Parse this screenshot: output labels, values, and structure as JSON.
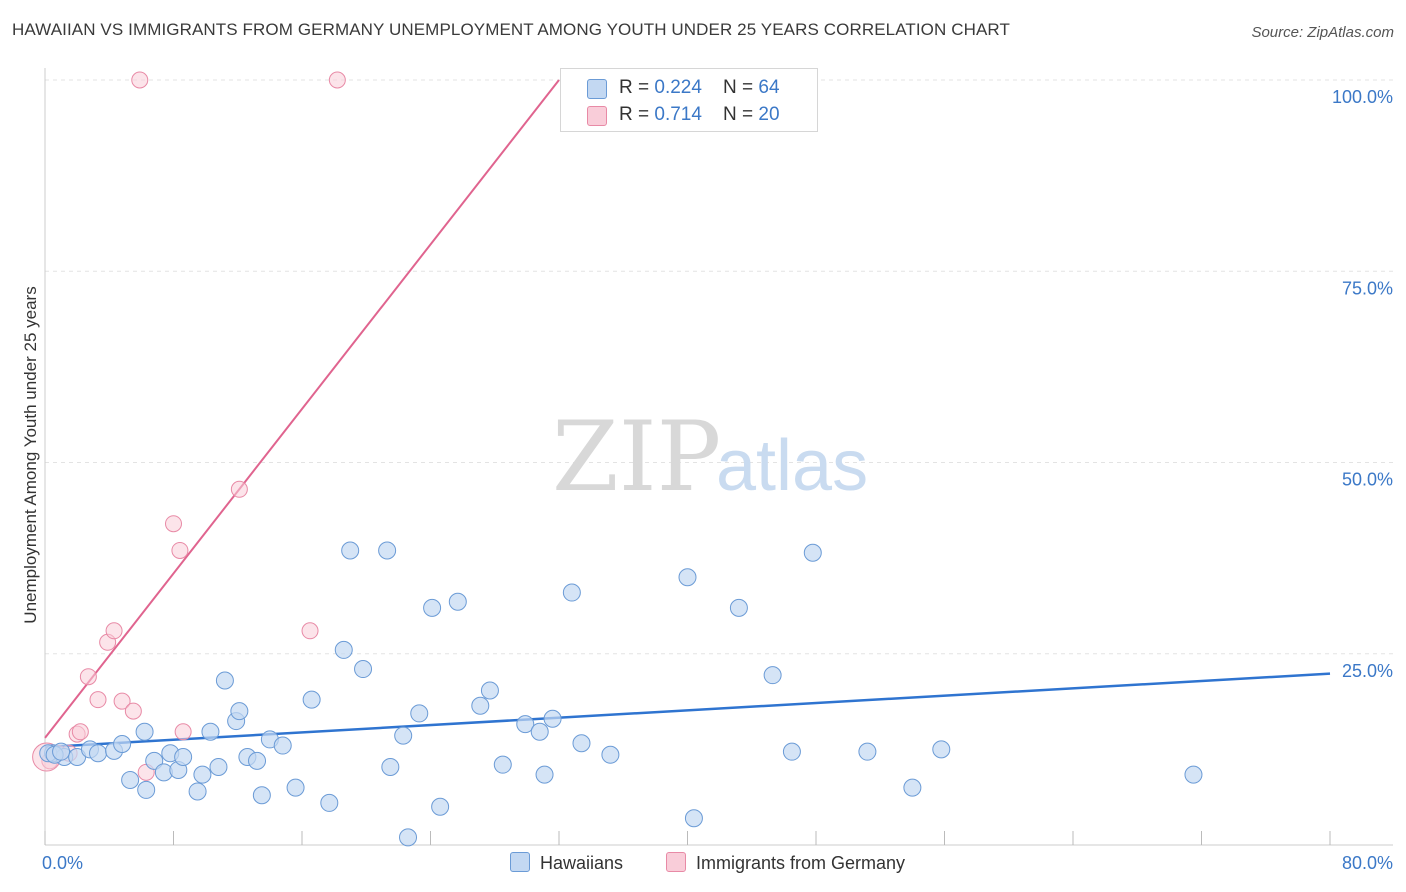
{
  "header": {
    "title": "HAWAIIAN VS IMMIGRANTS FROM GERMANY UNEMPLOYMENT AMONG YOUTH UNDER 25 YEARS CORRELATION CHART",
    "source": "Source: ZipAtlas.com"
  },
  "watermark": {
    "zip": "ZIP",
    "atlas": "atlas"
  },
  "legend": {
    "rows": [
      {
        "r_label": "R = ",
        "r_value": "0.224",
        "n_label": "N = ",
        "n_value": "64"
      },
      {
        "r_label": "R = ",
        "r_value": "0.714",
        "n_label": "N = ",
        "n_value": "20"
      }
    ]
  },
  "colors": {
    "hawaiians_fill": "#c3d8f2",
    "hawaiians_stroke": "#6b9bd6",
    "hawaiians_line": "#2f74d0",
    "germany_fill": "#f9cdd9",
    "germany_stroke": "#e88aa6",
    "germany_line": "#e0648f",
    "tick_text": "#3b78c7",
    "grid": "#e3e3e3"
  },
  "chart_data": {
    "type": "scatter",
    "title": "HAWAIIAN VS IMMIGRANTS FROM GERMANY UNEMPLOYMENT AMONG YOUTH UNDER 25 YEARS CORRELATION CHART",
    "xlabel": "",
    "ylabel": "Unemployment Among Youth under 25 years",
    "xlim": [
      0,
      80
    ],
    "ylim": [
      0,
      100
    ],
    "x_tick_labels": [
      {
        "value": 0,
        "label": "0.0%"
      },
      {
        "value": 80,
        "label": "80.0%"
      }
    ],
    "y_tick_labels": [
      {
        "value": 25,
        "label": "25.0%"
      },
      {
        "value": 50,
        "label": "50.0%"
      },
      {
        "value": 75,
        "label": "75.0%"
      },
      {
        "value": 100,
        "label": "100.0%"
      }
    ],
    "x_minor_ticks": [
      0,
      8,
      16,
      24,
      32,
      40,
      48,
      56,
      64,
      72,
      80
    ],
    "series": [
      {
        "name": "Hawaiians",
        "r": 0.224,
        "n": 64,
        "trend": {
          "x0": 0,
          "y0": 12.8,
          "x1": 80,
          "y1": 22.4
        },
        "points": [
          [
            0.5,
            12.0
          ],
          [
            1.2,
            11.5
          ],
          [
            2.0,
            11.5
          ],
          [
            2.8,
            12.5
          ],
          [
            3.3,
            12.0
          ],
          [
            4.3,
            12.3
          ],
          [
            4.8,
            13.2
          ],
          [
            5.3,
            8.5
          ],
          [
            6.2,
            14.8
          ],
          [
            6.3,
            7.2
          ],
          [
            6.8,
            11.0
          ],
          [
            7.4,
            9.5
          ],
          [
            7.8,
            12.0
          ],
          [
            8.3,
            9.8
          ],
          [
            8.6,
            11.5
          ],
          [
            9.5,
            7.0
          ],
          [
            9.8,
            9.2
          ],
          [
            10.3,
            14.8
          ],
          [
            10.8,
            10.2
          ],
          [
            11.2,
            21.5
          ],
          [
            11.9,
            16.2
          ],
          [
            12.1,
            17.5
          ],
          [
            12.6,
            11.5
          ],
          [
            13.2,
            11.0
          ],
          [
            13.5,
            6.5
          ],
          [
            14.0,
            13.8
          ],
          [
            14.8,
            13.0
          ],
          [
            15.6,
            7.5
          ],
          [
            16.6,
            19.0
          ],
          [
            17.7,
            5.5
          ],
          [
            18.6,
            25.5
          ],
          [
            19.0,
            38.5
          ],
          [
            19.8,
            23.0
          ],
          [
            21.3,
            38.5
          ],
          [
            21.5,
            10.2
          ],
          [
            22.3,
            14.3
          ],
          [
            22.6,
            1.0
          ],
          [
            23.3,
            17.2
          ],
          [
            24.1,
            31.0
          ],
          [
            24.6,
            5.0
          ],
          [
            25.7,
            31.8
          ],
          [
            27.1,
            18.2
          ],
          [
            27.7,
            20.2
          ],
          [
            28.5,
            10.5
          ],
          [
            29.9,
            15.8
          ],
          [
            30.8,
            14.8
          ],
          [
            31.1,
            9.2
          ],
          [
            31.6,
            16.5
          ],
          [
            32.8,
            33.0
          ],
          [
            33.4,
            13.3
          ],
          [
            35.2,
            11.8
          ],
          [
            40.0,
            35.0
          ],
          [
            40.4,
            3.5
          ],
          [
            43.2,
            31.0
          ],
          [
            45.3,
            22.2
          ],
          [
            46.5,
            12.2
          ],
          [
            47.8,
            38.2
          ],
          [
            51.2,
            12.2
          ],
          [
            54.0,
            7.5
          ],
          [
            55.8,
            12.5
          ],
          [
            71.5,
            9.2
          ],
          [
            0.2,
            12.0
          ],
          [
            0.6,
            11.8
          ],
          [
            1.0,
            12.2
          ]
        ]
      },
      {
        "name": "Immigrants from Germany",
        "r": 0.714,
        "n": 20,
        "trend": {
          "x0": 0,
          "y0": 14.0,
          "x1": 32,
          "y1": 100
        },
        "points": [
          [
            0.3,
            11.0
          ],
          [
            0.8,
            12.0
          ],
          [
            1.5,
            12.0
          ],
          [
            2.0,
            14.5
          ],
          [
            2.2,
            14.8
          ],
          [
            2.7,
            22.0
          ],
          [
            3.3,
            19.0
          ],
          [
            3.9,
            26.5
          ],
          [
            4.3,
            28.0
          ],
          [
            4.8,
            18.8
          ],
          [
            5.5,
            17.5
          ],
          [
            6.3,
            9.5
          ],
          [
            8.0,
            42.0
          ],
          [
            8.4,
            38.5
          ],
          [
            8.6,
            14.8
          ],
          [
            12.1,
            46.5
          ],
          [
            16.5,
            28.0
          ],
          [
            5.9,
            100.0
          ],
          [
            18.2,
            100.0
          ],
          [
            0.1,
            11.5
          ]
        ]
      }
    ]
  },
  "bottom_legend": {
    "items": [
      {
        "label": "Hawaiians"
      },
      {
        "label": "Immigrants from Germany"
      }
    ]
  }
}
